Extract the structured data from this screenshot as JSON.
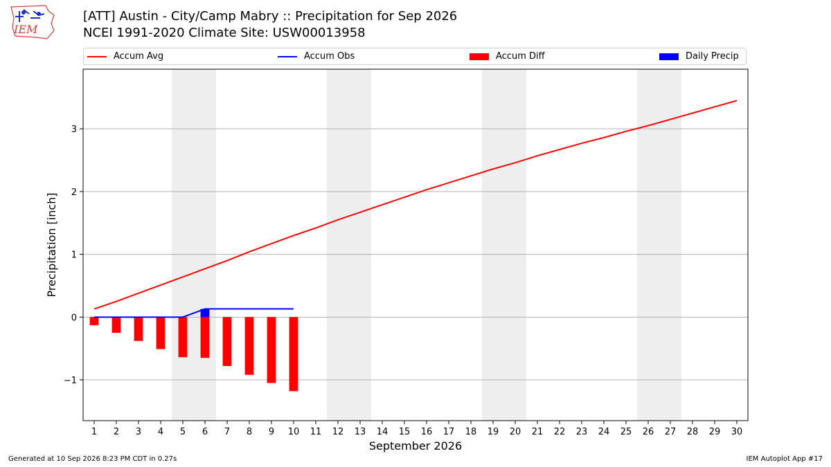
{
  "header": {
    "title_line1": "[ATT] Austin - City/Camp Mabry :: Precipitation for Sep 2026",
    "title_line2": "NCEI 1991-2020 Climate Site: USW00013958",
    "logo_text": "IEM"
  },
  "legend": {
    "placement": "top",
    "items": [
      {
        "label": "Accum Avg",
        "kind": "line",
        "color": "#ff0000"
      },
      {
        "label": "Accum Obs",
        "kind": "line",
        "color": "#0000ff"
      },
      {
        "label": "Accum Diff",
        "kind": "bar",
        "color": "#ff0000"
      },
      {
        "label": "Daily Precip",
        "kind": "bar",
        "color": "#0000ff"
      }
    ]
  },
  "footer": {
    "left": "Generated at 10 Sep 2026 8:23 PM CDT in 0.27s",
    "right": "IEM Autoplot App #17"
  },
  "chart_data": {
    "type": "line",
    "xlabel": "September 2026",
    "ylabel": "Precipitation [inch]",
    "xlim": [
      0.5,
      30.5
    ],
    "ylim": [
      -1.65,
      3.95
    ],
    "x_ticks": [
      1,
      2,
      3,
      4,
      5,
      6,
      7,
      8,
      9,
      10,
      11,
      12,
      13,
      14,
      15,
      16,
      17,
      18,
      19,
      20,
      21,
      22,
      23,
      24,
      25,
      26,
      27,
      28,
      29,
      30
    ],
    "y_ticks": [
      -1,
      0,
      1,
      2,
      3
    ],
    "y_tick_labels": [
      "−1",
      "0",
      "1",
      "2",
      "3"
    ],
    "grid": "horizontal",
    "weekend_shading": [
      [
        4.5,
        6.5
      ],
      [
        11.5,
        13.5
      ],
      [
        18.5,
        20.5
      ],
      [
        25.5,
        27.5
      ]
    ],
    "colors": {
      "avg": "#ff0000",
      "obs": "#0000ff",
      "diff": "#ff0000",
      "daily": "#0000ff",
      "weekend": "#eeeeee",
      "grid": "#b0b0b0"
    },
    "series": [
      {
        "name": "Accum Avg",
        "kind": "line",
        "x": [
          1,
          2,
          3,
          4,
          5,
          6,
          7,
          8,
          9,
          10,
          11,
          12,
          13,
          14,
          15,
          16,
          17,
          18,
          19,
          20,
          21,
          22,
          23,
          24,
          25,
          26,
          27,
          28,
          29,
          30
        ],
        "values": [
          0.13,
          0.25,
          0.38,
          0.51,
          0.64,
          0.77,
          0.9,
          1.04,
          1.17,
          1.3,
          1.42,
          1.55,
          1.67,
          1.79,
          1.91,
          2.03,
          2.14,
          2.25,
          2.36,
          2.46,
          2.57,
          2.67,
          2.77,
          2.86,
          2.96,
          3.05,
          3.15,
          3.25,
          3.35,
          3.45
        ]
      },
      {
        "name": "Accum Obs",
        "kind": "line",
        "x": [
          1,
          2,
          3,
          4,
          5,
          6,
          7,
          8,
          9,
          10
        ],
        "values": [
          0.0,
          0.0,
          0.0,
          0.0,
          0.0,
          0.13,
          0.13,
          0.13,
          0.13,
          0.13
        ]
      },
      {
        "name": "Accum Diff",
        "kind": "bar",
        "x": [
          1,
          2,
          3,
          4,
          5,
          6,
          7,
          8,
          9,
          10
        ],
        "values": [
          -0.13,
          -0.25,
          -0.38,
          -0.51,
          -0.64,
          -0.65,
          -0.78,
          -0.92,
          -1.05,
          -1.18
        ]
      },
      {
        "name": "Daily Precip",
        "kind": "bar",
        "x": [
          6
        ],
        "values": [
          0.13
        ]
      }
    ]
  }
}
